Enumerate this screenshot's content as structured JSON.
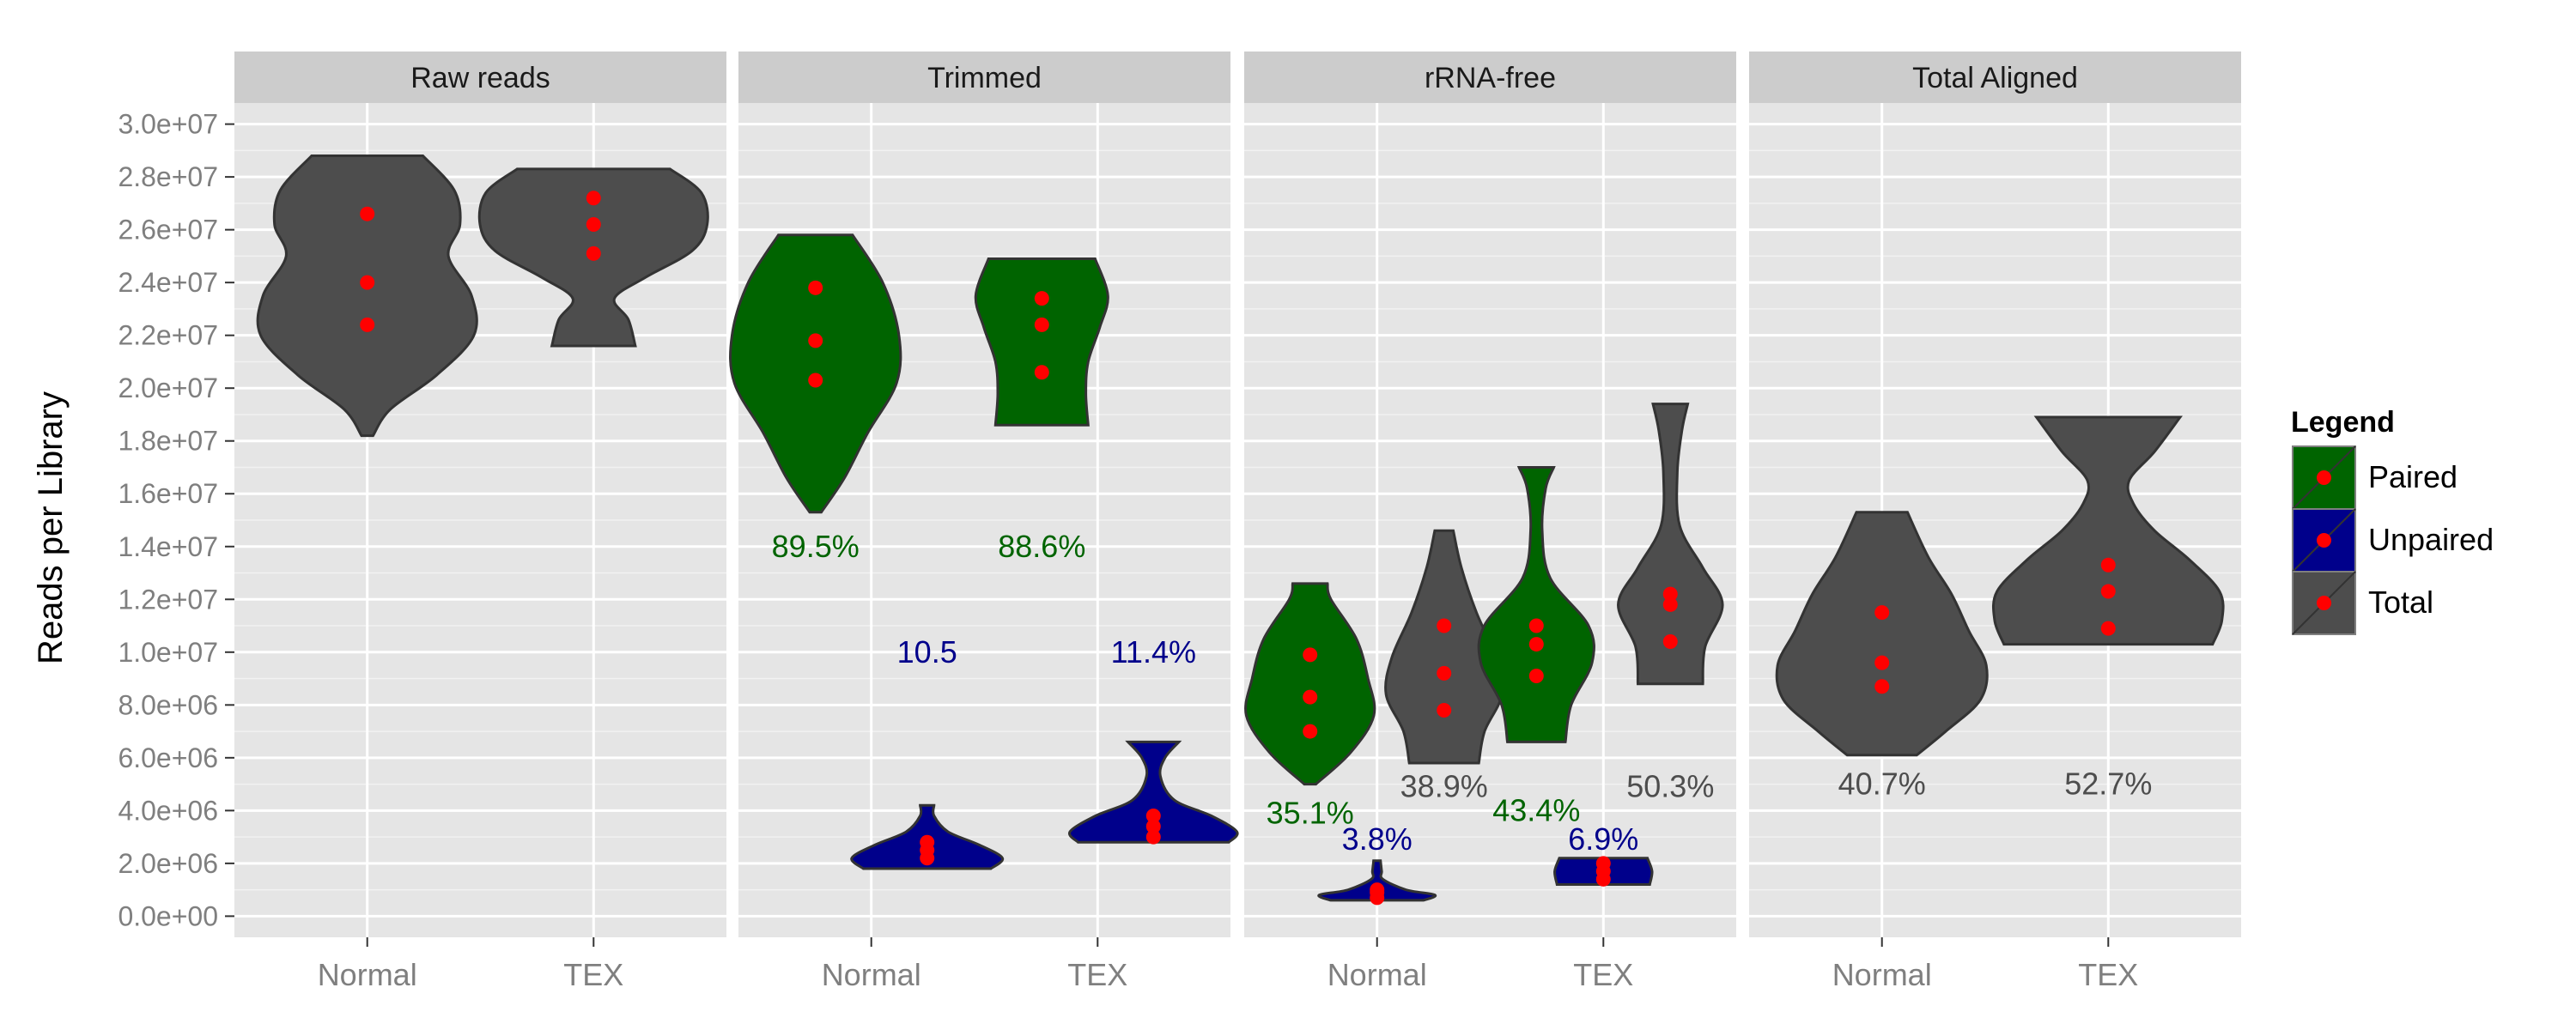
{
  "chart_data": {
    "type": "violin",
    "ylabel": "Reads per Library",
    "xlabel": "",
    "ylim": [
      -800000,
      30800000
    ],
    "y_ticks": [
      "0.0e+00",
      "2.0e+06",
      "4.0e+06",
      "6.0e+06",
      "8.0e+06",
      "1.0e+07",
      "1.2e+07",
      "1.4e+07",
      "1.6e+07",
      "1.8e+07",
      "2.0e+07",
      "2.2e+07",
      "2.4e+07",
      "2.6e+07",
      "2.8e+07",
      "3.0e+07"
    ],
    "y_tick_values": [
      0,
      2000000,
      4000000,
      6000000,
      8000000,
      10000000,
      12000000,
      14000000,
      16000000,
      18000000,
      20000000,
      22000000,
      24000000,
      26000000,
      28000000,
      30000000
    ],
    "categories": [
      "Normal",
      "TEX"
    ],
    "legend": {
      "title": "Legend",
      "position": "right",
      "items": [
        {
          "name": "Paired",
          "color": "#006400"
        },
        {
          "name": "Unpaired",
          "color": "#00008B"
        },
        {
          "name": "Total",
          "color": "#4D4D4D"
        }
      ]
    },
    "panels": [
      {
        "title": "Raw reads",
        "violins": [
          {
            "category": "Normal",
            "type": "Total",
            "offset": 0,
            "min": 18200000,
            "max": 28800000,
            "profile": [
              [
                18200000,
                0.05
              ],
              [
                19200000,
                0.2
              ],
              [
                20500000,
                0.6
              ],
              [
                22000000,
                0.92
              ],
              [
                23500000,
                0.9
              ],
              [
                25000000,
                0.7
              ],
              [
                26200000,
                0.8
              ],
              [
                27500000,
                0.75
              ],
              [
                28800000,
                0.48
              ]
            ],
            "points": [
              22400000,
              24000000,
              26600000
            ]
          },
          {
            "category": "TEX",
            "type": "Total",
            "offset": 0,
            "min": 21600000,
            "max": 28300000,
            "profile": [
              [
                21600000,
                0.36
              ],
              [
                22600000,
                0.3
              ],
              [
                23400000,
                0.18
              ],
              [
                24200000,
                0.45
              ],
              [
                25200000,
                0.85
              ],
              [
                26200000,
                0.98
              ],
              [
                27400000,
                0.93
              ],
              [
                28300000,
                0.66
              ]
            ],
            "points": [
              25100000,
              26200000,
              27200000
            ]
          }
        ],
        "annotations": []
      },
      {
        "title": "Trimmed",
        "violins": [
          {
            "category": "Normal",
            "type": "Paired",
            "offset": -0.5,
            "min": 15300000,
            "max": 25800000,
            "profile": [
              [
                15300000,
                0.05
              ],
              [
                16600000,
                0.25
              ],
              [
                18300000,
                0.45
              ],
              [
                20200000,
                0.7
              ],
              [
                22000000,
                0.72
              ],
              [
                24000000,
                0.58
              ],
              [
                25800000,
                0.32
              ]
            ],
            "points": [
              20300000,
              21800000,
              23800000
            ]
          },
          {
            "category": "Normal",
            "type": "Unpaired",
            "offset": 0.5,
            "min": 1800000,
            "max": 4200000,
            "profile": [
              [
                1800000,
                0.55
              ],
              [
                2200000,
                0.65
              ],
              [
                2700000,
                0.45
              ],
              [
                3200000,
                0.18
              ],
              [
                3800000,
                0.06
              ],
              [
                4200000,
                0.06
              ]
            ],
            "points": [
              2200000,
              2500000,
              2800000
            ]
          },
          {
            "category": "TEX",
            "type": "Paired",
            "offset": -0.5,
            "min": 18600000,
            "max": 24900000,
            "profile": [
              [
                18600000,
                0.4
              ],
              [
                19800000,
                0.38
              ],
              [
                21000000,
                0.4
              ],
              [
                22300000,
                0.5
              ],
              [
                23500000,
                0.57
              ],
              [
                24900000,
                0.46
              ]
            ],
            "points": [
              20600000,
              22400000,
              23400000
            ]
          },
          {
            "category": "TEX",
            "type": "Unpaired",
            "offset": 0.5,
            "min": 2800000,
            "max": 6600000,
            "profile": [
              [
                2800000,
                0.65
              ],
              [
                3200000,
                0.72
              ],
              [
                3800000,
                0.5
              ],
              [
                4400000,
                0.18
              ],
              [
                5300000,
                0.06
              ],
              [
                6000000,
                0.1
              ],
              [
                6600000,
                0.22
              ]
            ],
            "points": [
              3000000,
              3400000,
              3800000
            ]
          }
        ],
        "annotations": [
          {
            "text": "89.5%",
            "category": "Normal",
            "offset": -0.5,
            "y": 14000000,
            "type": "Paired"
          },
          {
            "text": "10.5",
            "category": "Normal",
            "offset": 0.5,
            "y": 10000000,
            "type": "Unpaired"
          },
          {
            "text": "88.6%",
            "category": "TEX",
            "offset": -0.5,
            "y": 14000000,
            "type": "Paired"
          },
          {
            "text": "11.4%",
            "category": "TEX",
            "offset": 0.5,
            "y": 10000000,
            "type": "Unpaired"
          }
        ]
      },
      {
        "title": "rRNA-free",
        "violins": [
          {
            "category": "Normal",
            "type": "Paired",
            "offset": -0.6,
            "min": 5000000,
            "max": 12600000,
            "profile": [
              [
                5000000,
                0.05
              ],
              [
                6200000,
                0.35
              ],
              [
                7600000,
                0.55
              ],
              [
                9000000,
                0.5
              ],
              [
                10500000,
                0.4
              ],
              [
                12000000,
                0.18
              ],
              [
                12600000,
                0.15
              ]
            ],
            "points": [
              7000000,
              8300000,
              9900000
            ]
          },
          {
            "category": "Normal",
            "type": "Unpaired",
            "offset": 0,
            "min": 600000,
            "max": 2100000,
            "profile": [
              [
                600000,
                0.4
              ],
              [
                800000,
                0.5
              ],
              [
                1000000,
                0.25
              ],
              [
                1400000,
                0.05
              ],
              [
                1700000,
                0.04
              ],
              [
                2100000,
                0.03
              ]
            ],
            "points": [
              700000,
              900000,
              1000000
            ]
          },
          {
            "category": "Normal",
            "type": "Total",
            "offset": 0.6,
            "min": 5800000,
            "max": 14600000,
            "profile": [
              [
                5800000,
                0.3
              ],
              [
                7000000,
                0.35
              ],
              [
                8400000,
                0.5
              ],
              [
                9800000,
                0.45
              ],
              [
                11500000,
                0.28
              ],
              [
                13200000,
                0.15
              ],
              [
                14600000,
                0.08
              ]
            ],
            "points": [
              7800000,
              9200000,
              11000000
            ]
          },
          {
            "category": "TEX",
            "type": "Paired",
            "offset": -0.6,
            "min": 6600000,
            "max": 17000000,
            "profile": [
              [
                6600000,
                0.25
              ],
              [
                8000000,
                0.3
              ],
              [
                9600000,
                0.48
              ],
              [
                11000000,
                0.45
              ],
              [
                12800000,
                0.12
              ],
              [
                14600000,
                0.05
              ],
              [
                16200000,
                0.08
              ],
              [
                17000000,
                0.15
              ]
            ],
            "points": [
              9100000,
              10300000,
              11000000
            ]
          },
          {
            "category": "TEX",
            "type": "Unpaired",
            "offset": 0,
            "min": 1200000,
            "max": 2200000,
            "profile": [
              [
                1200000,
                0.4
              ],
              [
                1700000,
                0.42
              ],
              [
                2200000,
                0.38
              ]
            ],
            "points": [
              1400000,
              1700000,
              2000000
            ]
          },
          {
            "category": "TEX",
            "type": "Total",
            "offset": 0.6,
            "min": 8800000,
            "max": 19400000,
            "profile": [
              [
                8800000,
                0.28
              ],
              [
                10200000,
                0.3
              ],
              [
                11800000,
                0.45
              ],
              [
                13200000,
                0.28
              ],
              [
                14800000,
                0.08
              ],
              [
                16800000,
                0.06
              ],
              [
                18400000,
                0.1
              ],
              [
                19400000,
                0.15
              ]
            ],
            "points": [
              10400000,
              11800000,
              12200000
            ]
          }
        ],
        "annotations": [
          {
            "text": "35.1%",
            "category": "Normal",
            "offset": -0.6,
            "y": 3900000,
            "type": "Paired"
          },
          {
            "text": "3.8%",
            "category": "Normal",
            "offset": 0,
            "y": 2900000,
            "type": "Unpaired"
          },
          {
            "text": "38.9%",
            "category": "Normal",
            "offset": 0.6,
            "y": 4900000,
            "type": "Total"
          },
          {
            "text": "43.4%",
            "category": "TEX",
            "offset": -0.6,
            "y": 4000000,
            "type": "Paired"
          },
          {
            "text": "6.9%",
            "category": "TEX",
            "offset": 0,
            "y": 2900000,
            "type": "Unpaired"
          },
          {
            "text": "50.3%",
            "category": "TEX",
            "offset": 0.6,
            "y": 4900000,
            "type": "Total"
          }
        ]
      },
      {
        "title": "Total Aligned",
        "violins": [
          {
            "category": "Normal",
            "type": "Total",
            "offset": 0,
            "min": 6100000,
            "max": 15300000,
            "profile": [
              [
                6100000,
                0.3
              ],
              [
                7000000,
                0.55
              ],
              [
                8200000,
                0.85
              ],
              [
                9500000,
                0.9
              ],
              [
                10800000,
                0.75
              ],
              [
                12200000,
                0.6
              ],
              [
                13600000,
                0.4
              ],
              [
                15300000,
                0.22
              ]
            ],
            "points": [
              8700000,
              9600000,
              11500000
            ]
          },
          {
            "category": "TEX",
            "type": "Total",
            "offset": 0,
            "min": 10300000,
            "max": 18900000,
            "profile": [
              [
                10300000,
                0.9
              ],
              [
                11200000,
                0.98
              ],
              [
                12300000,
                0.96
              ],
              [
                13500000,
                0.7
              ],
              [
                14600000,
                0.4
              ],
              [
                15600000,
                0.22
              ],
              [
                16500000,
                0.18
              ],
              [
                17600000,
                0.4
              ],
              [
                18900000,
                0.62
              ]
            ],
            "points": [
              10900000,
              12300000,
              13300000
            ]
          }
        ],
        "annotations": [
          {
            "text": "40.7%",
            "category": "Normal",
            "offset": 0,
            "y": 5000000,
            "type": "Total"
          },
          {
            "text": "52.7%",
            "category": "TEX",
            "offset": 0,
            "y": 5000000,
            "type": "Total"
          }
        ]
      }
    ]
  }
}
